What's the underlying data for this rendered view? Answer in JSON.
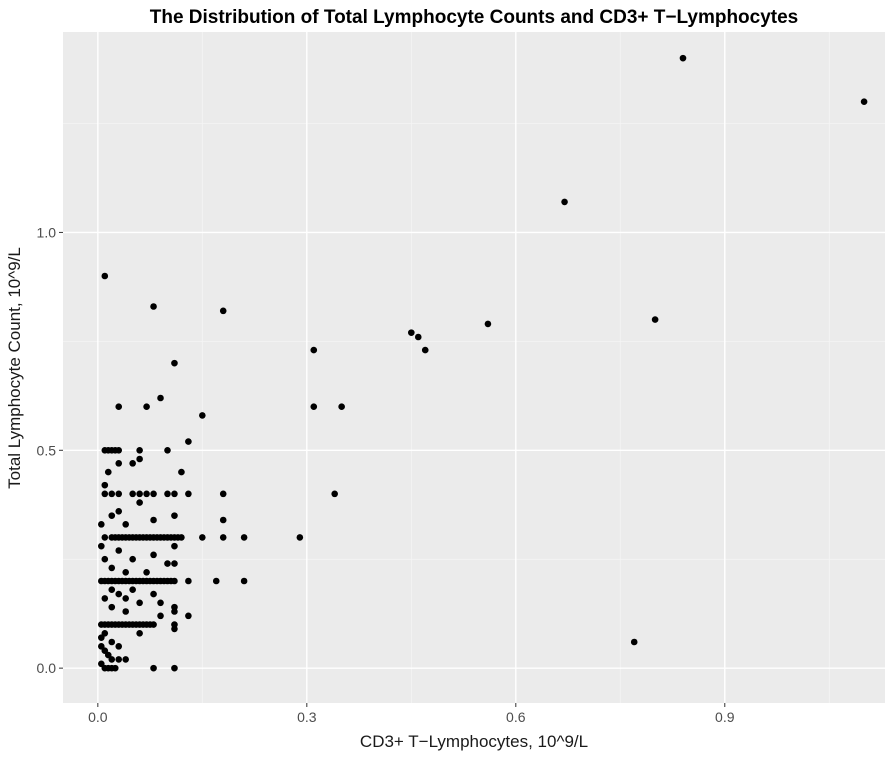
{
  "chart_data": {
    "type": "scatter",
    "title": "The Distribution of Total Lymphocyte Counts and CD3+ T−Lymphocytes",
    "xlabel": "CD3+ T−Lymphocytes, 10^9/L",
    "ylabel": "Total Lymphocyte Count, 10^9/L",
    "xlim": [
      -0.05,
      1.13
    ],
    "ylim": [
      -0.08,
      1.46
    ],
    "x_ticks": [
      0.0,
      0.3,
      0.6,
      0.9
    ],
    "x_tick_labels": [
      "0.0",
      "0.3",
      "0.6",
      "0.9"
    ],
    "y_ticks": [
      0.0,
      0.5,
      1.0
    ],
    "y_tick_labels": [
      "0.0",
      "0.5",
      "1.0"
    ],
    "grid": true,
    "legend": "none",
    "colors": {
      "panel": "#ebebeb",
      "grid_major": "#ffffff",
      "grid_minor": "#f5f5f5",
      "point": "#000000"
    },
    "points": [
      [
        0.84,
        1.4
      ],
      [
        1.1,
        1.3
      ],
      [
        0.67,
        1.07
      ],
      [
        0.8,
        0.8
      ],
      [
        0.56,
        0.79
      ],
      [
        0.77,
        0.06
      ],
      [
        0.45,
        0.77
      ],
      [
        0.46,
        0.76
      ],
      [
        0.47,
        0.73
      ],
      [
        0.31,
        0.73
      ],
      [
        0.31,
        0.6
      ],
      [
        0.35,
        0.6
      ],
      [
        0.34,
        0.4
      ],
      [
        0.29,
        0.3
      ],
      [
        0.18,
        0.82
      ],
      [
        0.08,
        0.83
      ],
      [
        0.01,
        0.9
      ],
      [
        0.11,
        0.7
      ],
      [
        0.09,
        0.62
      ],
      [
        0.07,
        0.6
      ],
      [
        0.03,
        0.6
      ],
      [
        0.15,
        0.58
      ],
      [
        0.13,
        0.52
      ],
      [
        0.1,
        0.5
      ],
      [
        0.06,
        0.48
      ],
      [
        0.05,
        0.47
      ],
      [
        0.01,
        0.5
      ],
      [
        0.015,
        0.5
      ],
      [
        0.02,
        0.5
      ],
      [
        0.025,
        0.5
      ],
      [
        0.03,
        0.5
      ],
      [
        0.06,
        0.5
      ],
      [
        0.01,
        0.42
      ],
      [
        0.12,
        0.45
      ],
      [
        0.01,
        0.4
      ],
      [
        0.02,
        0.4
      ],
      [
        0.03,
        0.4
      ],
      [
        0.05,
        0.4
      ],
      [
        0.06,
        0.4
      ],
      [
        0.07,
        0.4
      ],
      [
        0.08,
        0.4
      ],
      [
        0.1,
        0.4
      ],
      [
        0.11,
        0.4
      ],
      [
        0.13,
        0.4
      ],
      [
        0.18,
        0.4
      ],
      [
        0.06,
        0.38
      ],
      [
        0.02,
        0.35
      ],
      [
        0.04,
        0.33
      ],
      [
        0.11,
        0.35
      ],
      [
        0.18,
        0.34
      ],
      [
        0.005,
        0.33
      ],
      [
        0.01,
        0.3
      ],
      [
        0.02,
        0.3
      ],
      [
        0.025,
        0.3
      ],
      [
        0.03,
        0.3
      ],
      [
        0.035,
        0.3
      ],
      [
        0.04,
        0.3
      ],
      [
        0.045,
        0.3
      ],
      [
        0.05,
        0.3
      ],
      [
        0.055,
        0.3
      ],
      [
        0.06,
        0.3
      ],
      [
        0.065,
        0.3
      ],
      [
        0.07,
        0.3
      ],
      [
        0.075,
        0.3
      ],
      [
        0.08,
        0.3
      ],
      [
        0.085,
        0.3
      ],
      [
        0.09,
        0.3
      ],
      [
        0.095,
        0.3
      ],
      [
        0.1,
        0.3
      ],
      [
        0.105,
        0.3
      ],
      [
        0.11,
        0.3
      ],
      [
        0.115,
        0.3
      ],
      [
        0.12,
        0.3
      ],
      [
        0.15,
        0.3
      ],
      [
        0.18,
        0.3
      ],
      [
        0.21,
        0.3
      ],
      [
        0.03,
        0.27
      ],
      [
        0.05,
        0.25
      ],
      [
        0.08,
        0.26
      ],
      [
        0.02,
        0.23
      ],
      [
        0.11,
        0.28
      ],
      [
        0.11,
        0.24
      ],
      [
        0.04,
        0.22
      ],
      [
        0.01,
        0.25
      ],
      [
        0.005,
        0.2
      ],
      [
        0.01,
        0.2
      ],
      [
        0.015,
        0.2
      ],
      [
        0.02,
        0.2
      ],
      [
        0.025,
        0.2
      ],
      [
        0.03,
        0.2
      ],
      [
        0.035,
        0.2
      ],
      [
        0.04,
        0.2
      ],
      [
        0.045,
        0.2
      ],
      [
        0.05,
        0.2
      ],
      [
        0.055,
        0.2
      ],
      [
        0.06,
        0.2
      ],
      [
        0.065,
        0.2
      ],
      [
        0.07,
        0.2
      ],
      [
        0.075,
        0.2
      ],
      [
        0.08,
        0.2
      ],
      [
        0.085,
        0.2
      ],
      [
        0.09,
        0.2
      ],
      [
        0.095,
        0.2
      ],
      [
        0.1,
        0.2
      ],
      [
        0.105,
        0.2
      ],
      [
        0.11,
        0.2
      ],
      [
        0.13,
        0.2
      ],
      [
        0.17,
        0.2
      ],
      [
        0.21,
        0.2
      ],
      [
        0.03,
        0.17
      ],
      [
        0.05,
        0.18
      ],
      [
        0.08,
        0.17
      ],
      [
        0.01,
        0.16
      ],
      [
        0.06,
        0.15
      ],
      [
        0.09,
        0.15
      ],
      [
        0.11,
        0.14
      ],
      [
        0.02,
        0.14
      ],
      [
        0.04,
        0.13
      ],
      [
        0.11,
        0.13
      ],
      [
        0.005,
        0.1
      ],
      [
        0.01,
        0.1
      ],
      [
        0.015,
        0.1
      ],
      [
        0.02,
        0.1
      ],
      [
        0.025,
        0.1
      ],
      [
        0.03,
        0.1
      ],
      [
        0.035,
        0.1
      ],
      [
        0.04,
        0.1
      ],
      [
        0.045,
        0.1
      ],
      [
        0.05,
        0.1
      ],
      [
        0.055,
        0.1
      ],
      [
        0.06,
        0.1
      ],
      [
        0.065,
        0.1
      ],
      [
        0.07,
        0.1
      ],
      [
        0.075,
        0.1
      ],
      [
        0.08,
        0.1
      ],
      [
        0.11,
        0.1
      ],
      [
        0.13,
        0.12
      ],
      [
        0.11,
        0.09
      ],
      [
        0.01,
        0.08
      ],
      [
        0.02,
        0.06
      ],
      [
        0.005,
        0.05
      ],
      [
        0.01,
        0.04
      ],
      [
        0.015,
        0.03
      ],
      [
        0.02,
        0.02
      ],
      [
        0.03,
        0.02
      ],
      [
        0.04,
        0.02
      ],
      [
        0.005,
        0.01
      ],
      [
        0.01,
        0.0
      ],
      [
        0.015,
        0.0
      ],
      [
        0.02,
        0.0
      ],
      [
        0.025,
        0.0
      ],
      [
        0.08,
        0.0
      ],
      [
        0.11,
        0.0
      ],
      [
        0.005,
        0.07
      ],
      [
        0.03,
        0.05
      ],
      [
        0.06,
        0.08
      ],
      [
        0.09,
        0.12
      ],
      [
        0.02,
        0.18
      ],
      [
        0.04,
        0.16
      ],
      [
        0.07,
        0.22
      ],
      [
        0.1,
        0.24
      ],
      [
        0.005,
        0.28
      ],
      [
        0.03,
        0.36
      ],
      [
        0.08,
        0.34
      ],
      [
        0.015,
        0.45
      ],
      [
        0.03,
        0.47
      ]
    ]
  }
}
